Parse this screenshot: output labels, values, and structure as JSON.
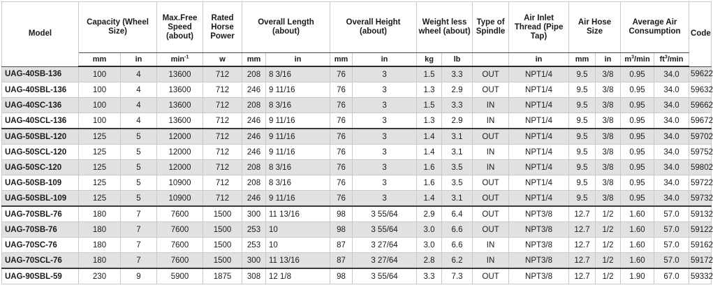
{
  "headers": {
    "model": "Model",
    "capacity": "Capacity (Wheel Size)",
    "speed": "Max.Free Speed (about)",
    "power": "Rated Horse Power",
    "length": "Overall Length (about)",
    "height": "Overall Height (about)",
    "weight": "Weight less wheel (about)",
    "spindle": "Type of Spindle",
    "inlet": "Air Inlet Thread (Pipe Tap)",
    "hose": "Air Hose Size",
    "consumption": "Average Air Consumption",
    "code": "Code"
  },
  "units": {
    "cap_mm": "mm",
    "cap_in": "in",
    "speed": "min",
    "speed_sup": "-1",
    "power": "w",
    "len_mm": "mm",
    "len_in": "in",
    "ht_mm": "mm",
    "ht_in": "in",
    "wt_kg": "kg",
    "wt_lb": "lb",
    "inlet": "in",
    "hose_mm": "mm",
    "hose_in": "in",
    "cons_m3": "m",
    "cons_m3_sup": "3",
    "cons_m3_suffix": "/min",
    "cons_ft3": "ft",
    "cons_ft3_sup": "3",
    "cons_ft3_suffix": "/min"
  },
  "rows": [
    [
      "UAG-40SB-136",
      "100",
      "4",
      "13600",
      "712",
      "208",
      "8 3/16",
      "76",
      "3",
      "1.5",
      "3.3",
      "OUT",
      "NPT1/4",
      "9.5",
      "3/8",
      "0.95",
      "34.0",
      "59622"
    ],
    [
      "UAG-40SBL-136",
      "100",
      "4",
      "13600",
      "712",
      "246",
      "9 11/16",
      "76",
      "3",
      "1.3",
      "2.9",
      "OUT",
      "NPT1/4",
      "9.5",
      "3/8",
      "0.95",
      "34.0",
      "59632"
    ],
    [
      "UAG-40SC-136",
      "100",
      "4",
      "13600",
      "712",
      "208",
      "8 3/16",
      "76",
      "3",
      "1.5",
      "3.3",
      "IN",
      "NPT1/4",
      "9.5",
      "3/8",
      "0.95",
      "34.0",
      "59662"
    ],
    [
      "UAG-40SCL-136",
      "100",
      "4",
      "13600",
      "712",
      "246",
      "9 11/16",
      "76",
      "3",
      "1.3",
      "2.9",
      "IN",
      "NPT1/4",
      "9.5",
      "3/8",
      "0.95",
      "34.0",
      "59672"
    ],
    [
      "UAG-50SBL-120",
      "125",
      "5",
      "12000",
      "712",
      "246",
      "9 11/16",
      "76",
      "3",
      "1.4",
      "3.1",
      "OUT",
      "NPT1/4",
      "9.5",
      "3/8",
      "0.95",
      "34.0",
      "59702"
    ],
    [
      "UAG-50SCL-120",
      "125",
      "5",
      "12000",
      "712",
      "246",
      "9 11/16",
      "76",
      "3",
      "1.4",
      "3.1",
      "IN",
      "NPT1/4",
      "9.5",
      "3/8",
      "0.95",
      "34.0",
      "59752"
    ],
    [
      "UAG-50SC-120",
      "125",
      "5",
      "12000",
      "712",
      "208",
      "8 3/16",
      "76",
      "3",
      "1.6",
      "3.5",
      "IN",
      "NPT1/4",
      "9.5",
      "3/8",
      "0.95",
      "34.0",
      "59802"
    ],
    [
      "UAG-50SB-109",
      "125",
      "5",
      "10900",
      "712",
      "208",
      "8 3/16",
      "76",
      "3",
      "1.6",
      "3.5",
      "OUT",
      "NPT1/4",
      "9.5",
      "3/8",
      "0.95",
      "34.0",
      "59722"
    ],
    [
      "UAG-50SBL-109",
      "125",
      "5",
      "10900",
      "712",
      "246",
      "9 11/16",
      "76",
      "3",
      "1.4",
      "3.1",
      "OUT",
      "NPT1/4",
      "9.5",
      "3/8",
      "0.95",
      "34.0",
      "59732"
    ],
    [
      "UAG-70SBL-76",
      "180",
      "7",
      "7600",
      "1500",
      "300",
      "11 13/16",
      "98",
      "3 55/64",
      "2.9",
      "6.4",
      "OUT",
      "NPT3/8",
      "12.7",
      "1/2",
      "1.60",
      "57.0",
      "59132"
    ],
    [
      "UAG-70SB-76",
      "180",
      "7",
      "7600",
      "1500",
      "253",
      "10",
      "98",
      "3 55/64",
      "3.0",
      "6.6",
      "OUT",
      "NPT3/8",
      "12.7",
      "1/2",
      "1.60",
      "57.0",
      "59122"
    ],
    [
      "UAG-70SC-76",
      "180",
      "7",
      "7600",
      "1500",
      "253",
      "10",
      "87",
      "3 27/64",
      "3.0",
      "6.6",
      "IN",
      "NPT3/8",
      "12.7",
      "1/2",
      "1.60",
      "57.0",
      "59162"
    ],
    [
      "UAG-70SCL-76",
      "180",
      "7",
      "7600",
      "1500",
      "300",
      "11 13/16",
      "87",
      "3 27/64",
      "2.8",
      "6.2",
      "IN",
      "NPT3/8",
      "12.7",
      "1/2",
      "1.60",
      "57.0",
      "59172"
    ],
    [
      "UAG-90SBL-59",
      "230",
      "9",
      "5900",
      "1875",
      "308",
      "12 1/8",
      "98",
      "3 55/64",
      "3.3",
      "7.3",
      "OUT",
      "NPT3/8",
      "12.7",
      "1/2",
      "1.90",
      "67.0",
      "59332"
    ]
  ]
}
